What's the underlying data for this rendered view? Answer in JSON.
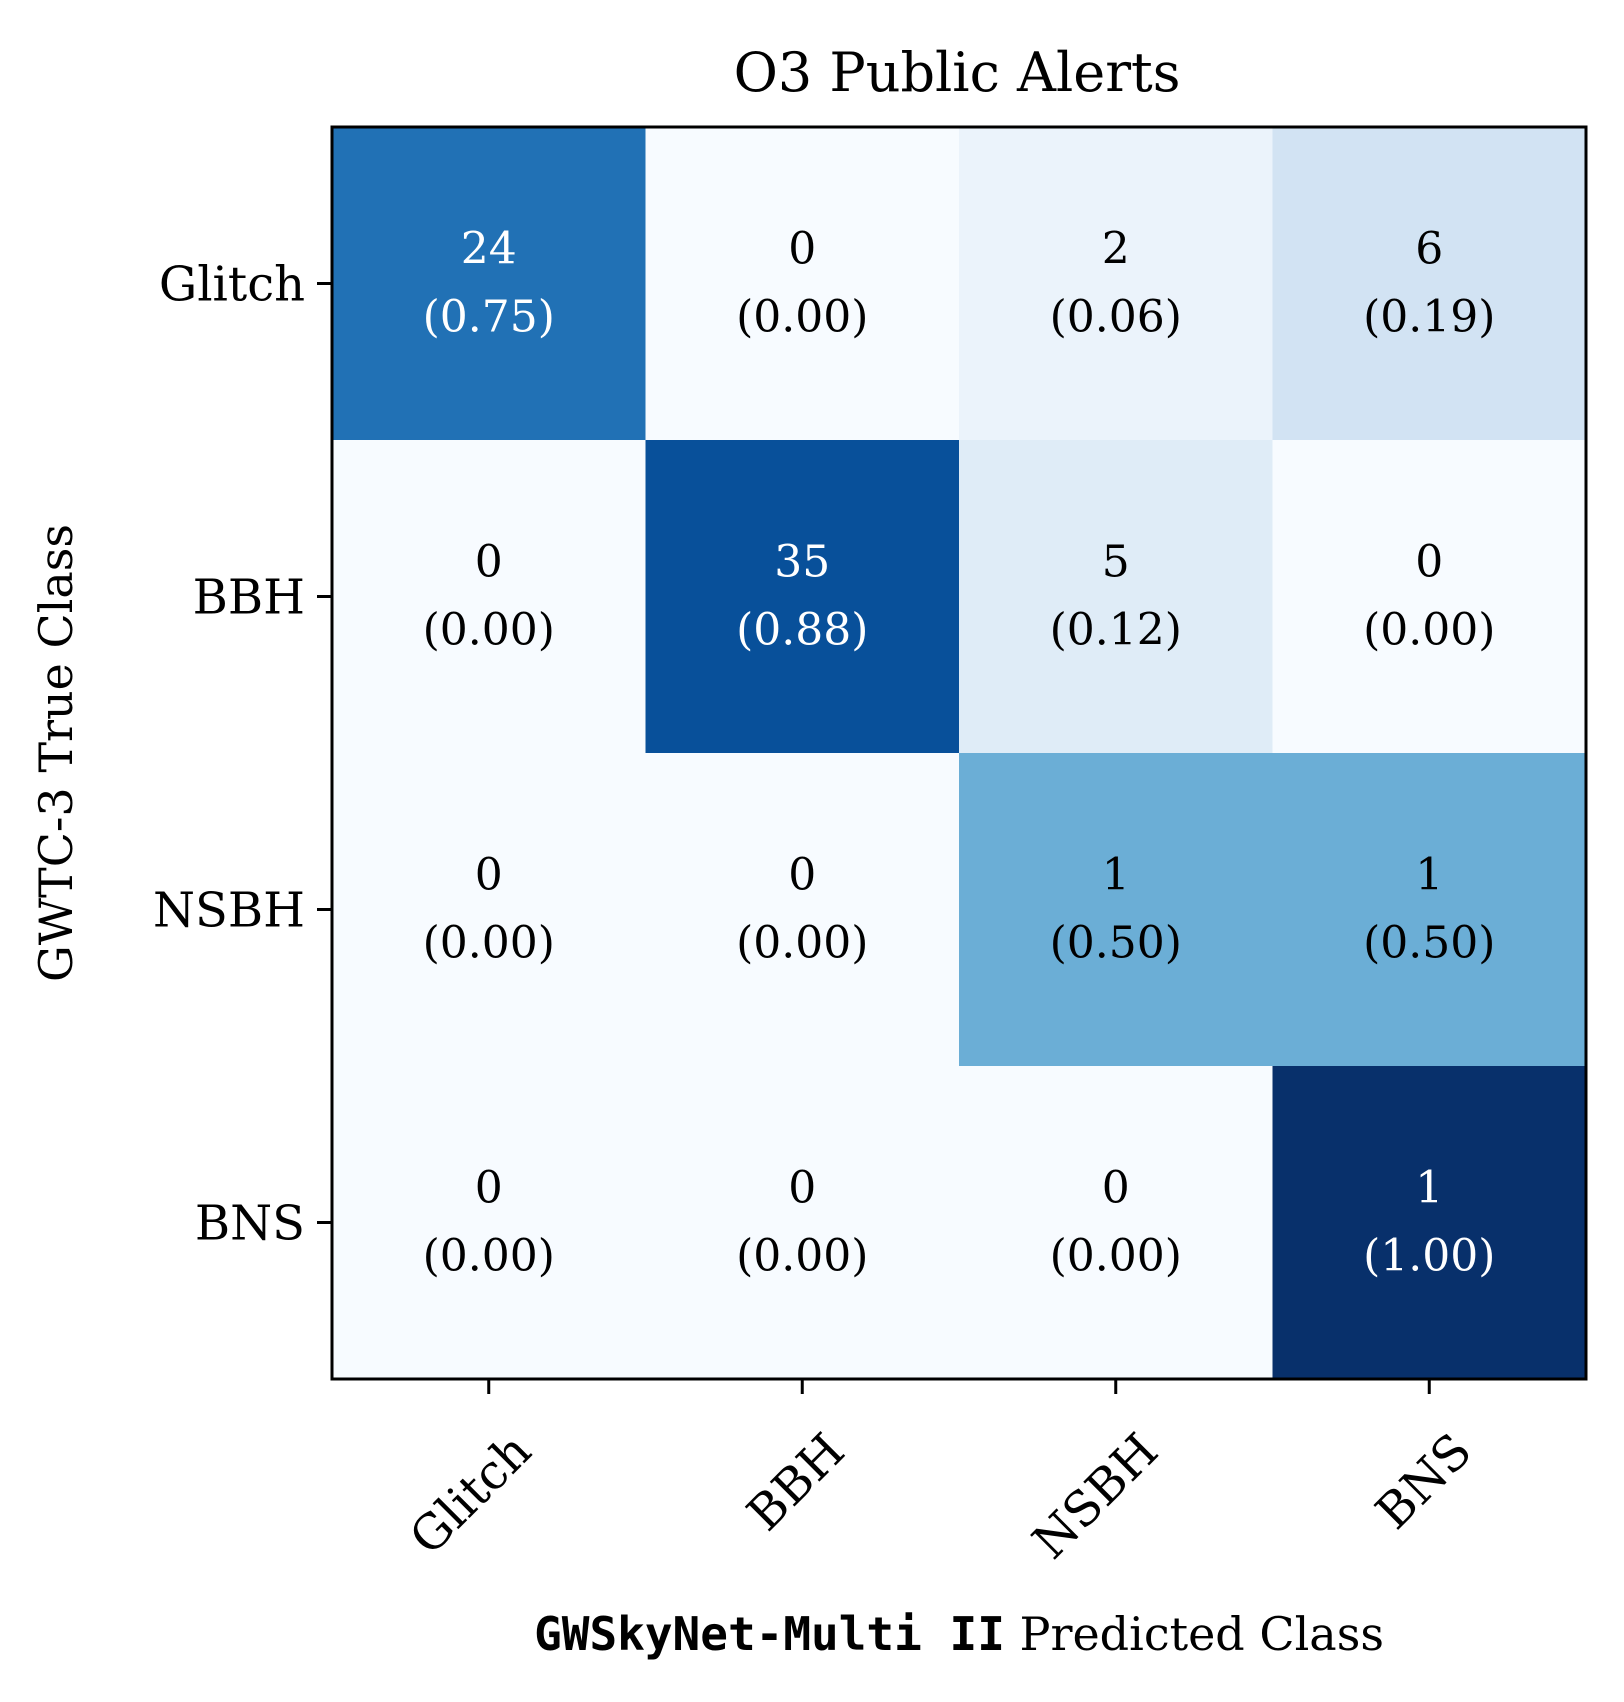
{
  "chart_data": {
    "type": "heatmap",
    "title": "O3 Public Alerts",
    "xlabel_prefix": "GWSkyNet-Multi II",
    "xlabel_suffix": "Predicted Class",
    "ylabel": "GWTC-3 True Class",
    "x_categories": [
      "Glitch",
      "BBH",
      "NSBH",
      "BNS"
    ],
    "y_categories": [
      "Glitch",
      "BBH",
      "NSBH",
      "BNS"
    ],
    "counts": [
      [
        24,
        0,
        2,
        6
      ],
      [
        0,
        35,
        5,
        0
      ],
      [
        0,
        0,
        1,
        1
      ],
      [
        0,
        0,
        0,
        1
      ]
    ],
    "normalized": [
      [
        0.75,
        0.0,
        0.06,
        0.19
      ],
      [
        0.0,
        0.88,
        0.12,
        0.0
      ],
      [
        0.0,
        0.0,
        0.5,
        0.5
      ],
      [
        0.0,
        0.0,
        0.0,
        1.0
      ]
    ],
    "colormap": "Blues",
    "value_range": [
      0,
      1
    ],
    "colors": {
      "low": "#f7fbff",
      "high": "#08306b",
      "text_dark": "#000000",
      "text_light": "#ffffff"
    }
  }
}
